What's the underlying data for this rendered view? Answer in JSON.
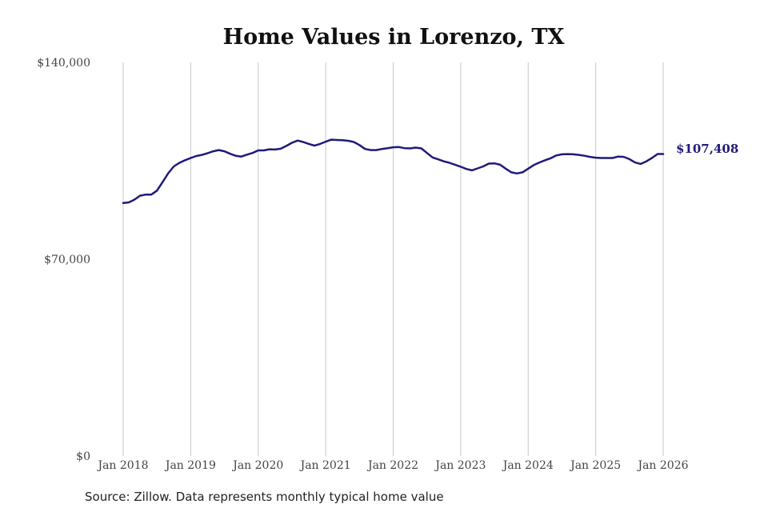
{
  "chart_data": {
    "type": "line",
    "title": "Home Values in Lorenzo, TX",
    "xlabel": "",
    "ylabel": "",
    "ylim": [
      0,
      140000
    ],
    "xlim": [
      "2018-01",
      "2026-01"
    ],
    "yticks": [
      {
        "value": 0,
        "label": "$0"
      },
      {
        "value": 70000,
        "label": "$70,000"
      },
      {
        "value": 140000,
        "label": "$140,000"
      }
    ],
    "xticks": [
      {
        "value": "2018-01",
        "label": "Jan 2018"
      },
      {
        "value": "2019-01",
        "label": "Jan 2019"
      },
      {
        "value": "2020-01",
        "label": "Jan 2020"
      },
      {
        "value": "2021-01",
        "label": "Jan 2021"
      },
      {
        "value": "2022-01",
        "label": "Jan 2022"
      },
      {
        "value": "2023-01",
        "label": "Jan 2023"
      },
      {
        "value": "2024-01",
        "label": "Jan 2024"
      },
      {
        "value": "2025-01",
        "label": "Jan 2025"
      },
      {
        "value": "2026-01",
        "label": "Jan 2026"
      }
    ],
    "grid": "vertical",
    "legend": "none",
    "color": "#1f1a7a",
    "end_label": "$107,408",
    "series": [
      {
        "x": [
          "2018-01",
          "2018-02",
          "2018-03",
          "2018-04",
          "2018-05",
          "2018-06",
          "2018-07",
          "2018-08",
          "2018-09",
          "2018-10",
          "2018-11",
          "2018-12",
          "2019-01",
          "2019-02",
          "2019-03",
          "2019-04",
          "2019-05",
          "2019-06",
          "2019-07",
          "2019-08",
          "2019-09",
          "2019-10",
          "2019-11",
          "2019-12",
          "2020-01",
          "2020-02",
          "2020-03",
          "2020-04",
          "2020-05",
          "2020-06",
          "2020-07",
          "2020-08",
          "2020-09",
          "2020-10",
          "2020-11",
          "2020-12",
          "2021-01",
          "2021-02",
          "2021-03",
          "2021-04",
          "2021-05",
          "2021-06",
          "2021-07",
          "2021-08",
          "2021-09",
          "2021-10",
          "2021-11",
          "2021-12",
          "2022-01",
          "2022-02",
          "2022-03",
          "2022-04",
          "2022-05",
          "2022-06",
          "2022-07",
          "2022-08",
          "2022-09",
          "2022-10",
          "2022-11",
          "2022-12",
          "2023-01",
          "2023-02",
          "2023-03",
          "2023-04",
          "2023-05",
          "2023-06",
          "2023-07",
          "2023-08",
          "2023-09",
          "2023-10",
          "2023-11",
          "2023-12",
          "2024-01",
          "2024-02",
          "2024-03",
          "2024-04",
          "2024-05",
          "2024-06",
          "2024-07",
          "2024-08",
          "2024-09",
          "2024-10",
          "2024-11",
          "2024-12",
          "2025-01",
          "2025-02",
          "2025-03",
          "2025-04",
          "2025-05",
          "2025-06",
          "2025-07",
          "2025-08",
          "2025-09",
          "2025-10",
          "2025-11",
          "2025-12",
          "2026-01"
        ],
        "values": [
          90000,
          90200,
          91200,
          92600,
          93000,
          93000,
          94400,
          97400,
          100600,
          103000,
          104300,
          105200,
          106000,
          106700,
          107100,
          107700,
          108400,
          108800,
          108400,
          107500,
          106800,
          106500,
          107200,
          107800,
          108700,
          108700,
          109100,
          109000,
          109300,
          110300,
          111400,
          112200,
          111700,
          111000,
          110400,
          111000,
          111800,
          112500,
          112400,
          112300,
          112100,
          111700,
          110600,
          109200,
          108800,
          108800,
          109200,
          109500,
          109800,
          109900,
          109500,
          109400,
          109700,
          109400,
          107800,
          106200,
          105500,
          104800,
          104300,
          103600,
          102900,
          102100,
          101600,
          102300,
          103000,
          104000,
          104100,
          103600,
          102200,
          100900,
          100500,
          100900,
          102200,
          103500,
          104400,
          105200,
          105900,
          106900,
          107300,
          107400,
          107300,
          107100,
          106800,
          106400,
          106100,
          106000,
          106000,
          106000,
          106500,
          106400,
          105600,
          104400,
          103900,
          104800,
          106000,
          107408,
          107408
        ]
      }
    ],
    "source": "Source: Zillow. Data represents monthly typical home value"
  }
}
